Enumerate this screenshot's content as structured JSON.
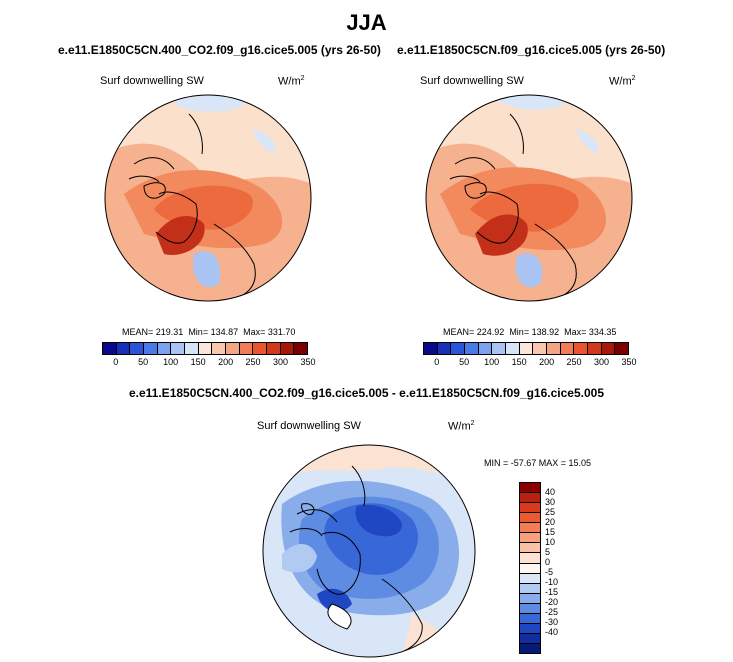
{
  "title": "JJA",
  "panels": [
    {
      "case": "e.e11.E1850C5CN.400_CO2.f09_g16.cice5.005 (yrs 26-50)",
      "variable": "Surf downwelling SW",
      "units_base": "W/m",
      "units_exp": "2",
      "mean": "MEAN= 219.31",
      "min": "Min= 134.87",
      "max": "Max= 331.70"
    },
    {
      "case": "e.e11.E1850C5CN.f09_g16.cice5.005 (yrs 26-50)",
      "variable": "Surf downwelling SW",
      "units_base": "W/m",
      "units_exp": "2",
      "mean": "MEAN= 224.92",
      "min": "Min= 138.92",
      "max": "Max= 334.35"
    }
  ],
  "diff": {
    "case": "e.e11.E1850C5CN.400_CO2.f09_g16.cice5.005 - e.e11.E1850C5CN.f09_g16.cice5.005",
    "variable": "Surf downwelling SW",
    "units_base": "W/m",
    "units_exp": "2",
    "minmax": "MIN = -57.67 MAX =  15.05"
  },
  "abs_colorbar": {
    "ticks": [
      "0",
      "50",
      "100",
      "150",
      "200",
      "250",
      "300",
      "350"
    ],
    "colors": [
      "#08088a",
      "#1630b8",
      "#2a55d8",
      "#4a7ae8",
      "#7aa2ef",
      "#a9c4f3",
      "#d6e4f8",
      "#fbe6da",
      "#f8c8ae",
      "#f4a582",
      "#f07d58",
      "#e8552f",
      "#d2381a",
      "#a81808",
      "#7a0000"
    ]
  },
  "diff_colorbar": {
    "ticks": [
      "40",
      "30",
      "25",
      "20",
      "15",
      "10",
      "5",
      "0",
      "-5",
      "-10",
      "-15",
      "-20",
      "-25",
      "-30",
      "-40"
    ],
    "colors": [
      "#8a0000",
      "#b82010",
      "#d83a1c",
      "#ec5a32",
      "#f37e55",
      "#f6a07c",
      "#f9c2a6",
      "#fbe2d2",
      "#fdf7f2",
      "#d8e6f7",
      "#b0caf1",
      "#88adea",
      "#5e8ce2",
      "#3868d8",
      "#1f47c4",
      "#102ea0",
      "#081a78"
    ]
  },
  "map_colors": {
    "ocean_light": "#fbe0cc",
    "warm_mid": "#f6a07c",
    "warm_strong": "#ef6a3c",
    "warm_max": "#c2301a",
    "cool_light": "#d8e6f7",
    "cool_mid": "#7aa2ef",
    "cool_strong": "#2f5fd6"
  }
}
